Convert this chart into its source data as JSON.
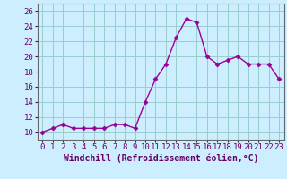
{
  "x": [
    0,
    1,
    2,
    3,
    4,
    5,
    6,
    7,
    8,
    9,
    10,
    11,
    12,
    13,
    14,
    15,
    16,
    17,
    18,
    19,
    20,
    21,
    22,
    23
  ],
  "y": [
    10.0,
    10.5,
    11.0,
    10.5,
    10.5,
    10.5,
    10.5,
    11.0,
    11.0,
    10.5,
    14.0,
    17.0,
    19.0,
    22.5,
    25.0,
    24.5,
    20.0,
    19.0,
    19.5,
    20.0,
    19.0,
    19.0,
    19.0,
    17.0
  ],
  "line_color": "#990099",
  "marker": "D",
  "markersize": 2.5,
  "linewidth": 1.0,
  "bg_color": "#cceeff",
  "grid_color": "#99cccc",
  "xlabel": "Windchill (Refroidissement éolien,°C)",
  "xlabel_fontsize": 7,
  "xtick_labels": [
    "0",
    "1",
    "2",
    "3",
    "4",
    "5",
    "6",
    "7",
    "8",
    "9",
    "10",
    "11",
    "12",
    "13",
    "14",
    "15",
    "16",
    "17",
    "18",
    "19",
    "20",
    "21",
    "22",
    "23"
  ],
  "ytick_values": [
    10,
    12,
    14,
    16,
    18,
    20,
    22,
    24,
    26
  ],
  "ylim": [
    9.0,
    27.0
  ],
  "xlim": [
    -0.5,
    23.5
  ],
  "tick_fontsize": 6.5
}
